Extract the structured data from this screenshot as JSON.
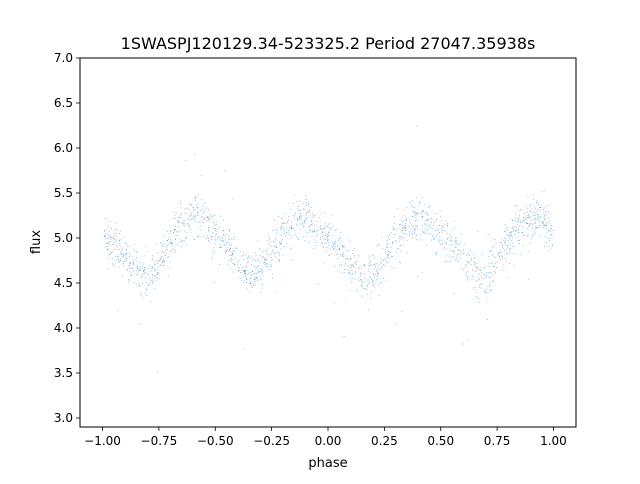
{
  "chart_data": {
    "type": "scatter",
    "title": "1SWASPJ120129.34-523325.2 Period 27047.35938s",
    "xlabel": "phase",
    "ylabel": "flux",
    "xlim": [
      -1.1,
      1.1
    ],
    "ylim": [
      2.9,
      7.0
    ],
    "xticks": [
      -1.0,
      -0.75,
      -0.5,
      -0.25,
      0.0,
      0.25,
      0.5,
      0.75,
      1.0
    ],
    "xtick_labels": [
      "−1.00",
      "−0.75",
      "−0.50",
      "−0.25",
      "0.00",
      "0.25",
      "0.50",
      "0.75",
      "1.00"
    ],
    "yticks": [
      3.0,
      3.5,
      4.0,
      4.5,
      5.0,
      5.5,
      6.0,
      6.5,
      7.0
    ],
    "ytick_labels": [
      "3.0",
      "3.5",
      "4.0",
      "4.5",
      "5.0",
      "5.5",
      "6.0",
      "6.5",
      "7.0"
    ],
    "grid": false,
    "legend": "none",
    "marker_color": "#1f77b4",
    "series": [
      {
        "x": [
          -1.0,
          -0.95,
          -0.9,
          -0.85,
          -0.8,
          -0.75,
          -0.7,
          -0.65,
          -0.6,
          -0.55,
          -0.5,
          -0.45,
          -0.4,
          -0.35,
          -0.3,
          -0.25,
          -0.2,
          -0.15,
          -0.1,
          -0.05,
          0.0,
          0.05,
          0.1,
          0.15,
          0.2,
          0.25,
          0.3,
          0.35,
          0.4,
          0.45,
          0.5,
          0.55,
          0.6,
          0.65,
          0.7,
          0.75,
          0.8,
          0.85,
          0.9,
          0.95,
          1.0
        ],
        "y": [
          5.05,
          4.95,
          4.8,
          4.62,
          4.55,
          4.7,
          4.95,
          5.15,
          5.25,
          5.2,
          5.05,
          4.92,
          4.75,
          4.6,
          4.65,
          4.85,
          5.05,
          5.2,
          5.25,
          5.1,
          4.95,
          4.85,
          4.7,
          4.55,
          4.6,
          4.8,
          5.0,
          5.15,
          5.22,
          5.15,
          5.05,
          4.95,
          4.8,
          4.6,
          4.55,
          4.75,
          4.98,
          5.15,
          5.22,
          5.2,
          5.05
        ]
      }
    ]
  }
}
